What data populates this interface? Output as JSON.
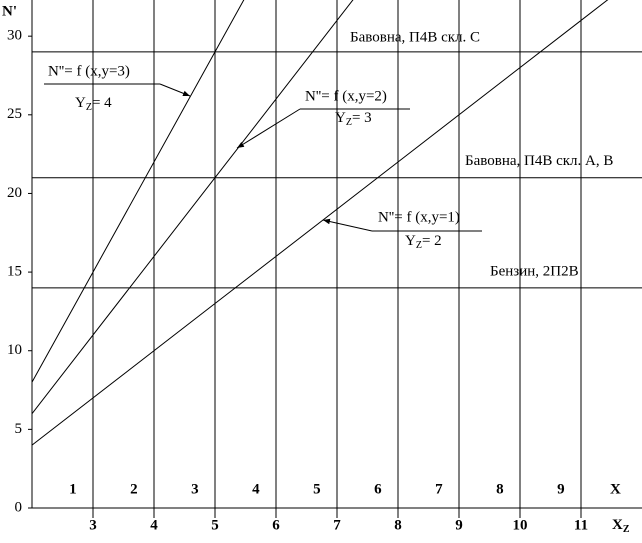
{
  "chart_data": {
    "type": "line",
    "ylabel": "N'",
    "xlabel": "X",
    "xlabel_sub": "Z",
    "x2label": "X",
    "xlim": [
      2,
      12
    ],
    "xticks": [
      3,
      4,
      5,
      6,
      7,
      8,
      9,
      10,
      11
    ],
    "x2lim": [
      0.33,
      10.33
    ],
    "x2ticks": [
      1,
      2,
      3,
      4,
      5,
      6,
      7,
      8,
      9
    ],
    "ylim": [
      0,
      32.3
    ],
    "yticks": [
      0,
      5,
      10,
      15,
      20,
      25,
      30
    ],
    "grid": true,
    "color": "#000000",
    "series": [
      {
        "x": [
          2,
          3,
          5
        ],
        "values": [
          8,
          15,
          29
        ],
        "formula": "N''= f (x,y=3)",
        "y_main": "Y",
        "y_sub": "Z",
        "y_rest": "= 4"
      },
      {
        "x": [
          2,
          5,
          7
        ],
        "values": [
          6,
          21,
          31
        ],
        "formula": "N''= f (x,y=2)",
        "y_main": "Y",
        "y_sub": "Z",
        "y_rest": "= 3"
      },
      {
        "x": [
          2,
          5,
          8,
          11
        ],
        "values": [
          4,
          13,
          22,
          31
        ],
        "formula": "N''= f (x,y=1)",
        "y_main": "Y",
        "y_sub": "Z",
        "y_rest": "= 2"
      }
    ],
    "hlines": [
      {
        "value": 29,
        "label": "Бавовна, П4В скл. С"
      },
      {
        "value": 21,
        "label": "Бавовна, П4В скл. А, В"
      },
      {
        "value": 14,
        "label": "Бензин, 2П2В"
      }
    ]
  }
}
